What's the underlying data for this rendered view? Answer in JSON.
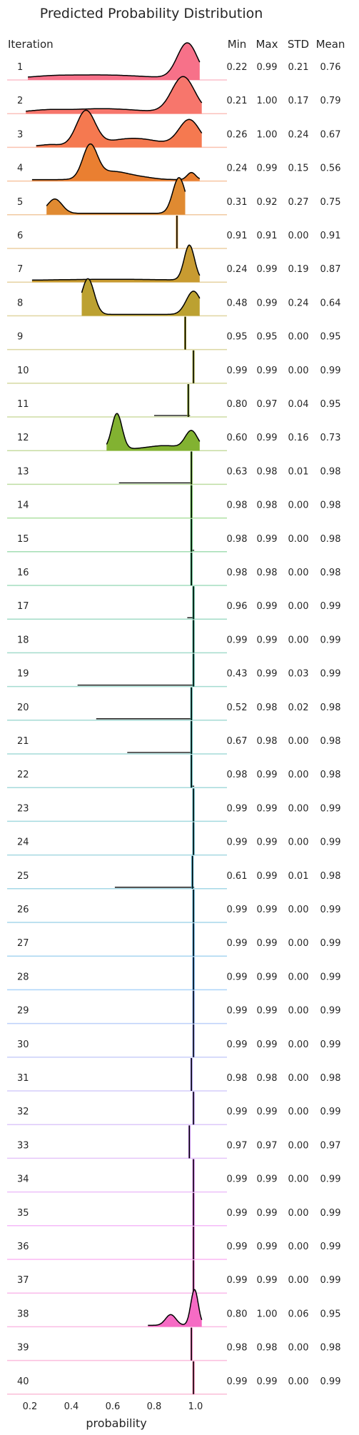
{
  "chart_data": {
    "type": "ridgeline",
    "title": "Predicted Probability Distribution",
    "xlabel": "probability",
    "xlim": [
      0.1,
      1.15
    ],
    "x_ticks": [
      "0.2",
      "0.4",
      "0.6",
      "0.8",
      "1.0"
    ],
    "header": {
      "iteration": "Iteration",
      "min": "Min",
      "max": "Max",
      "std": "STD",
      "mean": "Mean"
    },
    "rows": [
      {
        "iteration": "1",
        "min": "0.22",
        "max": "0.99",
        "std": "0.21",
        "mean": "0.76",
        "color": "#f77189",
        "peaks": [
          [
            0.96,
            0.048,
            1.0
          ],
          [
            0.55,
            0.2,
            0.1
          ],
          [
            0.3,
            0.1,
            0.04
          ]
        ]
      },
      {
        "iteration": "2",
        "min": "0.21",
        "max": "1.00",
        "std": "0.17",
        "mean": "0.79",
        "color": "#f7766c",
        "peaks": [
          [
            0.94,
            0.055,
            1.0
          ],
          [
            0.55,
            0.16,
            0.1
          ],
          [
            0.28,
            0.08,
            0.05
          ]
        ]
      },
      {
        "iteration": "3",
        "min": "0.26",
        "max": "1.00",
        "std": "0.24",
        "mean": "0.67",
        "color": "#f57950",
        "peaks": [
          [
            0.47,
            0.045,
            1.0
          ],
          [
            0.97,
            0.05,
            0.75
          ],
          [
            0.7,
            0.12,
            0.22
          ],
          [
            0.3,
            0.04,
            0.04
          ]
        ]
      },
      {
        "iteration": "4",
        "min": "0.24",
        "max": "0.99",
        "std": "0.15",
        "mean": "0.56",
        "color": "#ea7f31",
        "peaks": [
          [
            0.49,
            0.035,
            1.0
          ],
          [
            0.6,
            0.08,
            0.25
          ],
          [
            0.98,
            0.02,
            0.22
          ],
          [
            0.75,
            0.06,
            0.05
          ]
        ]
      },
      {
        "iteration": "5",
        "min": "0.31",
        "max": "0.92",
        "std": "0.27",
        "mean": "0.75",
        "color": "#e08a31",
        "peaks": [
          [
            0.92,
            0.03,
            1.0
          ],
          [
            0.32,
            0.035,
            0.4
          ]
        ]
      },
      {
        "iteration": "6",
        "min": "0.91",
        "max": "0.91",
        "std": "0.00",
        "mean": "0.91",
        "color": "#d59431",
        "peaks": [
          [
            0.91,
            0.002,
            1.0
          ]
        ]
      },
      {
        "iteration": "7",
        "min": "0.24",
        "max": "0.99",
        "std": "0.19",
        "mean": "0.87",
        "color": "#c89b31",
        "peaks": [
          [
            0.97,
            0.025,
            1.0
          ],
          [
            0.6,
            0.3,
            0.04
          ]
        ]
      },
      {
        "iteration": "8",
        "min": "0.48",
        "max": "0.99",
        "std": "0.24",
        "mean": "0.64",
        "color": "#bca131",
        "peaks": [
          [
            0.48,
            0.03,
            1.0
          ],
          [
            0.99,
            0.035,
            0.65
          ]
        ]
      },
      {
        "iteration": "9",
        "min": "0.95",
        "max": "0.95",
        "std": "0.00",
        "mean": "0.95",
        "color": "#b0a631",
        "peaks": [
          [
            0.95,
            0.002,
            1.0
          ]
        ]
      },
      {
        "iteration": "10",
        "min": "0.99",
        "max": "0.99",
        "std": "0.00",
        "mean": "0.99",
        "color": "#a3aa31",
        "peaks": [
          [
            0.99,
            0.002,
            1.0
          ]
        ]
      },
      {
        "iteration": "11",
        "min": "0.80",
        "max": "0.97",
        "std": "0.04",
        "mean": "0.95",
        "color": "#93ae31",
        "peaks": [
          [
            0.965,
            0.006,
            1.0
          ],
          [
            0.82,
            0.008,
            0.15
          ]
        ]
      },
      {
        "iteration": "12",
        "min": "0.60",
        "max": "0.99",
        "std": "0.16",
        "mean": "0.73",
        "color": "#82b231",
        "peaks": [
          [
            0.62,
            0.025,
            1.0
          ],
          [
            0.98,
            0.03,
            0.5
          ],
          [
            0.85,
            0.08,
            0.1
          ]
        ]
      },
      {
        "iteration": "13",
        "min": "0.63",
        "max": "0.98",
        "std": "0.01",
        "mean": "0.98",
        "color": "#6cb631",
        "peaks": [
          [
            0.98,
            0.003,
            1.0
          ]
        ]
      },
      {
        "iteration": "14",
        "min": "0.98",
        "max": "0.98",
        "std": "0.00",
        "mean": "0.98",
        "color": "#4bba31",
        "peaks": [
          [
            0.98,
            0.002,
            1.0
          ]
        ]
      },
      {
        "iteration": "15",
        "min": "0.98",
        "max": "0.99",
        "std": "0.00",
        "mean": "0.98",
        "color": "#32b456",
        "peaks": [
          [
            0.98,
            0.003,
            1.0
          ]
        ]
      },
      {
        "iteration": "16",
        "min": "0.98",
        "max": "0.98",
        "std": "0.00",
        "mean": "0.98",
        "color": "#33b372",
        "peaks": [
          [
            0.98,
            0.002,
            1.0
          ]
        ]
      },
      {
        "iteration": "17",
        "min": "0.96",
        "max": "0.99",
        "std": "0.00",
        "mean": "0.99",
        "color": "#34b282",
        "peaks": [
          [
            0.99,
            0.003,
            1.0
          ]
        ]
      },
      {
        "iteration": "18",
        "min": "0.99",
        "max": "0.99",
        "std": "0.00",
        "mean": "0.99",
        "color": "#35b18e",
        "peaks": [
          [
            0.99,
            0.002,
            1.0
          ]
        ]
      },
      {
        "iteration": "19",
        "min": "0.43",
        "max": "0.99",
        "std": "0.03",
        "mean": "0.99",
        "color": "#35b097",
        "peaks": [
          [
            0.99,
            0.004,
            1.0
          ]
        ]
      },
      {
        "iteration": "20",
        "min": "0.52",
        "max": "0.98",
        "std": "0.02",
        "mean": "0.98",
        "color": "#36afa0",
        "peaks": [
          [
            0.98,
            0.004,
            1.0
          ]
        ]
      },
      {
        "iteration": "21",
        "min": "0.67",
        "max": "0.98",
        "std": "0.00",
        "mean": "0.98",
        "color": "#36aea8",
        "peaks": [
          [
            0.98,
            0.003,
            1.0
          ]
        ]
      },
      {
        "iteration": "22",
        "min": "0.98",
        "max": "0.99",
        "std": "0.00",
        "mean": "0.98",
        "color": "#37adaf",
        "peaks": [
          [
            0.98,
            0.003,
            1.0
          ]
        ]
      },
      {
        "iteration": "23",
        "min": "0.99",
        "max": "0.99",
        "std": "0.00",
        "mean": "0.99",
        "color": "#38acb7",
        "peaks": [
          [
            0.99,
            0.002,
            1.0
          ]
        ]
      },
      {
        "iteration": "24",
        "min": "0.99",
        "max": "0.99",
        "std": "0.00",
        "mean": "0.99",
        "color": "#39abbf",
        "peaks": [
          [
            0.99,
            0.002,
            1.0
          ]
        ]
      },
      {
        "iteration": "25",
        "min": "0.61",
        "max": "0.99",
        "std": "0.01",
        "mean": "0.98",
        "color": "#3aa9c8",
        "peaks": [
          [
            0.985,
            0.005,
            1.0
          ]
        ]
      },
      {
        "iteration": "26",
        "min": "0.99",
        "max": "0.99",
        "std": "0.00",
        "mean": "0.99",
        "color": "#3ba7d3",
        "peaks": [
          [
            0.99,
            0.002,
            1.0
          ]
        ]
      },
      {
        "iteration": "27",
        "min": "0.99",
        "max": "0.99",
        "std": "0.00",
        "mean": "0.99",
        "color": "#3ea4e1",
        "peaks": [
          [
            0.99,
            0.002,
            1.0
          ]
        ]
      },
      {
        "iteration": "28",
        "min": "0.99",
        "max": "0.99",
        "std": "0.00",
        "mean": "0.99",
        "color": "#4a9ff4",
        "peaks": [
          [
            0.99,
            0.003,
            1.0
          ]
        ]
      },
      {
        "iteration": "29",
        "min": "0.99",
        "max": "0.99",
        "std": "0.00",
        "mean": "0.99",
        "color": "#6e9af4",
        "peaks": [
          [
            0.99,
            0.002,
            1.0
          ]
        ]
      },
      {
        "iteration": "30",
        "min": "0.99",
        "max": "0.99",
        "std": "0.00",
        "mean": "0.99",
        "color": "#8a94f4",
        "peaks": [
          [
            0.99,
            0.002,
            1.0
          ]
        ]
      },
      {
        "iteration": "31",
        "min": "0.98",
        "max": "0.98",
        "std": "0.00",
        "mean": "0.98",
        "color": "#9f8ef4",
        "peaks": [
          [
            0.98,
            0.002,
            1.0
          ]
        ]
      },
      {
        "iteration": "32",
        "min": "0.99",
        "max": "0.99",
        "std": "0.00",
        "mean": "0.99",
        "color": "#b387f4",
        "peaks": [
          [
            0.99,
            0.002,
            1.0
          ]
        ]
      },
      {
        "iteration": "33",
        "min": "0.97",
        "max": "0.97",
        "std": "0.00",
        "mean": "0.97",
        "color": "#c57ff4",
        "peaks": [
          [
            0.97,
            0.002,
            1.0
          ]
        ]
      },
      {
        "iteration": "34",
        "min": "0.99",
        "max": "0.99",
        "std": "0.00",
        "mean": "0.99",
        "color": "#d774f4",
        "peaks": [
          [
            0.99,
            0.002,
            1.0
          ]
        ]
      },
      {
        "iteration": "35",
        "min": "0.99",
        "max": "0.99",
        "std": "0.00",
        "mean": "0.99",
        "color": "#e967f2",
        "peaks": [
          [
            0.99,
            0.002,
            1.0
          ]
        ]
      },
      {
        "iteration": "36",
        "min": "0.99",
        "max": "0.99",
        "std": "0.00",
        "mean": "0.99",
        "color": "#f464e3",
        "peaks": [
          [
            0.99,
            0.002,
            1.0
          ]
        ]
      },
      {
        "iteration": "37",
        "min": "0.99",
        "max": "0.99",
        "std": "0.00",
        "mean": "0.99",
        "color": "#f568d3",
        "peaks": [
          [
            0.99,
            0.002,
            1.0
          ]
        ]
      },
      {
        "iteration": "38",
        "min": "0.80",
        "max": "1.00",
        "std": "0.06",
        "mean": "0.95",
        "color": "#f66bc4",
        "peaks": [
          [
            0.995,
            0.018,
            1.0
          ],
          [
            0.88,
            0.025,
            0.3
          ]
        ]
      },
      {
        "iteration": "39",
        "min": "0.98",
        "max": "0.98",
        "std": "0.00",
        "mean": "0.98",
        "color": "#f66db6",
        "peaks": [
          [
            0.98,
            0.002,
            1.0
          ]
        ]
      },
      {
        "iteration": "40",
        "min": "0.99",
        "max": "0.99",
        "std": "0.00",
        "mean": "0.99",
        "color": "#f66fa6",
        "peaks": [
          [
            0.99,
            0.002,
            1.0
          ]
        ]
      }
    ]
  }
}
